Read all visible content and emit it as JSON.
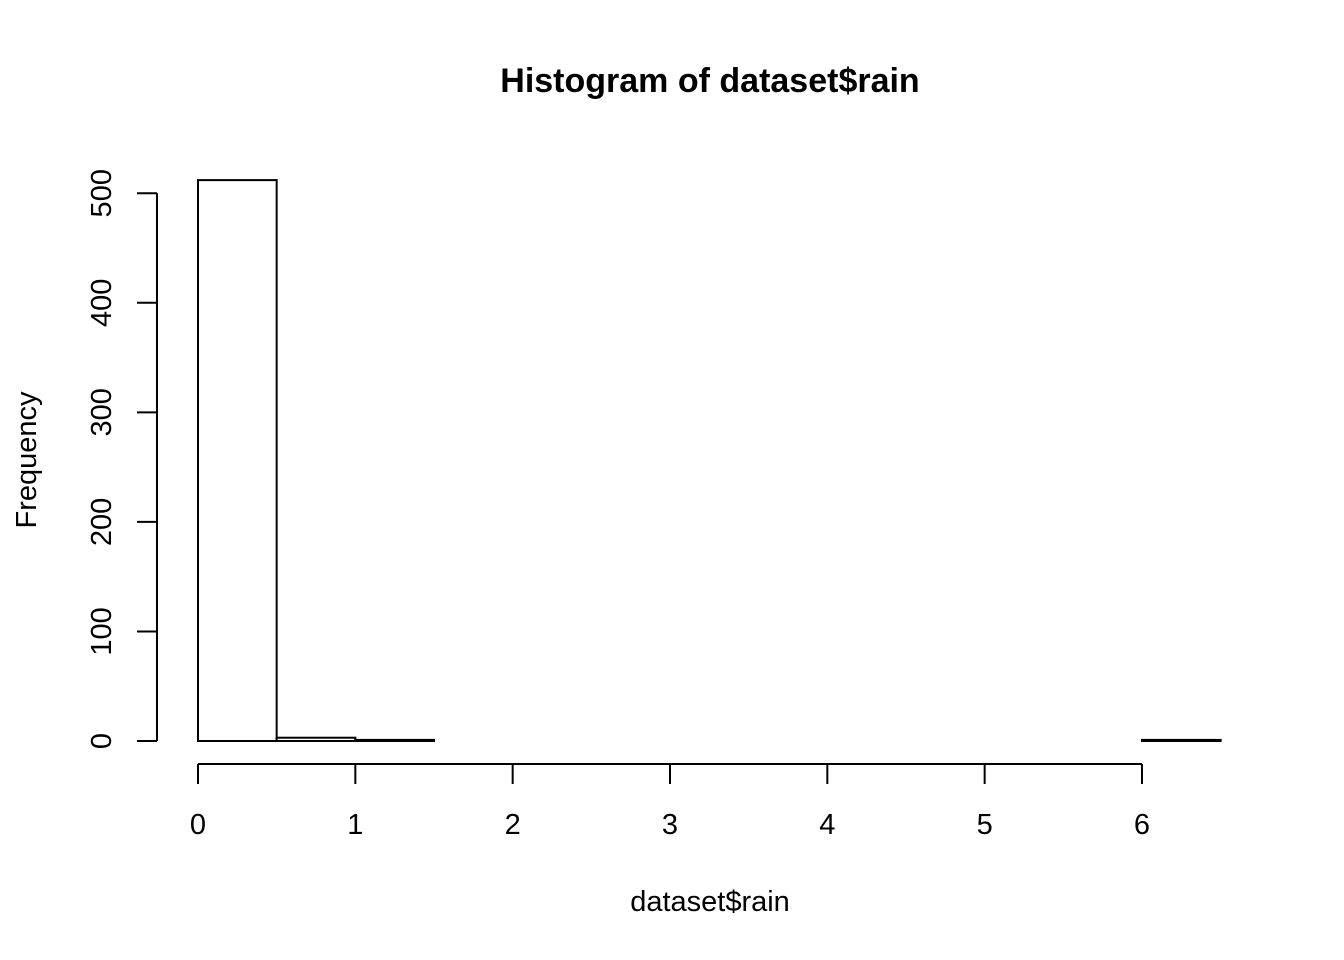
{
  "chart_data": {
    "type": "bar",
    "title": "Histogram of dataset$rain",
    "xlabel": "dataset$rain",
    "ylabel": "Frequency",
    "bin_edges": [
      0,
      0.5,
      1,
      1.5,
      2,
      2.5,
      3,
      3.5,
      4,
      4.5,
      5,
      5.5,
      6,
      6.5
    ],
    "values": [
      512,
      3,
      1,
      0,
      0,
      0,
      0,
      0,
      0,
      0,
      0,
      0,
      1
    ],
    "xlim": [
      0,
      6.5
    ],
    "ylim": [
      0,
      512
    ],
    "x_ticks": [
      "0",
      "1",
      "2",
      "3",
      "4",
      "5",
      "6"
    ],
    "y_ticks": [
      "0",
      "100",
      "200",
      "300",
      "400",
      "500"
    ],
    "grid": false,
    "colors": {
      "bar_fill": "#ffffff",
      "bar_stroke": "#000000"
    }
  }
}
